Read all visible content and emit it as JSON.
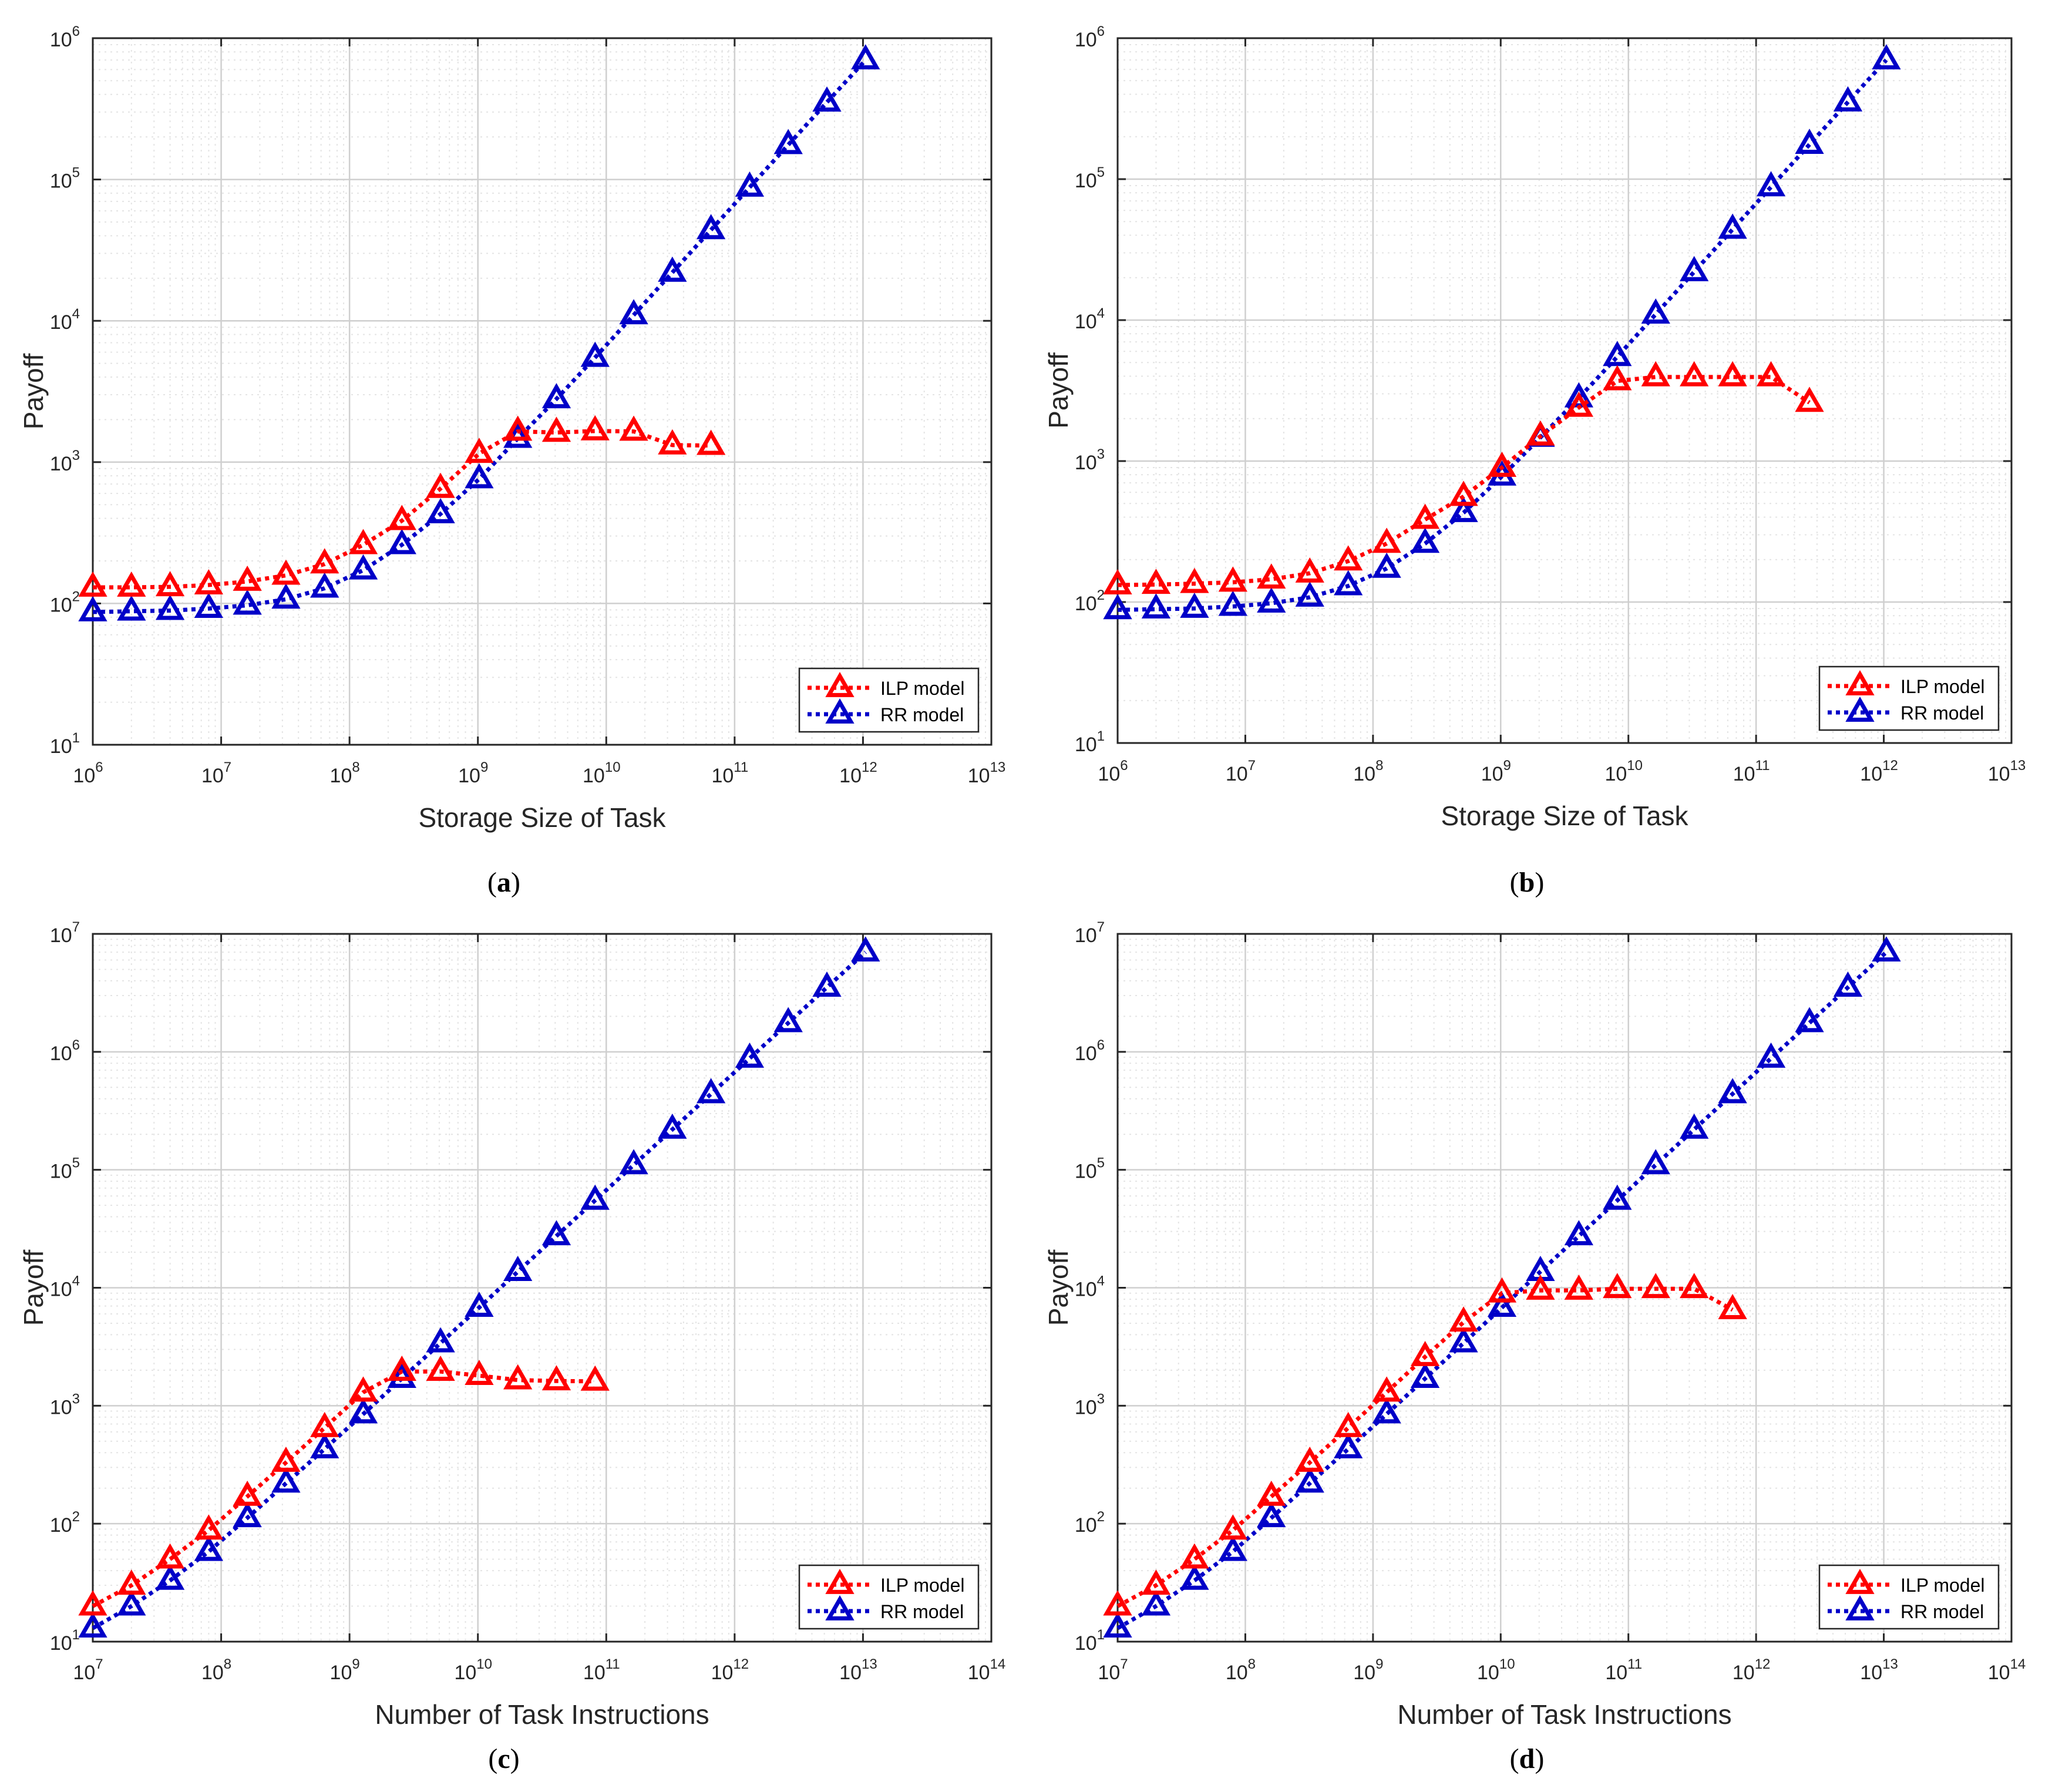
{
  "colors": {
    "ilp": "#ff0000",
    "rr": "#0000c8",
    "axis": "#262626",
    "grid_major": "#cfcfcf",
    "grid_minor": "#e4e4e4",
    "text": "#262626",
    "legend_border": "#262626"
  },
  "legend": {
    "ilp": "ILP model",
    "rr": "RR model"
  },
  "chart_data": [
    {
      "id": "a",
      "caption": "(a)",
      "type": "line",
      "xscale": "log",
      "yscale": "log",
      "xlabel": "Storage Size of Task",
      "ylabel": "Payoff",
      "xlim_exp": [
        6,
        13
      ],
      "ylim_exp": [
        1,
        6
      ],
      "x_tick_exponents": [
        "6",
        "7",
        "8",
        "9",
        "10",
        "11",
        "12",
        "13"
      ],
      "y_tick_exponents": [
        "1",
        "2",
        "3",
        "4",
        "5",
        "6"
      ],
      "tick_base": "10",
      "grid": true,
      "legend_position": "lower-right",
      "series": [
        {
          "name": "ILP model",
          "x_exp": [
            6.0,
            6.301,
            6.602,
            6.903,
            7.204,
            7.505,
            7.806,
            8.107,
            8.408,
            8.709,
            9.01,
            9.311,
            9.612,
            9.913,
            10.214,
            10.515,
            10.816
          ],
          "y": [
            130,
            130,
            131,
            135,
            143,
            158,
            190,
            260,
            385,
            650,
            1150,
            1650,
            1620,
            1660,
            1650,
            1320,
            1310
          ]
        },
        {
          "name": "RR model",
          "x_exp": [
            6.0,
            6.301,
            6.602,
            6.903,
            7.204,
            7.505,
            7.806,
            8.107,
            8.408,
            8.709,
            9.01,
            9.311,
            9.612,
            9.913,
            10.214,
            10.515,
            10.816,
            11.117,
            11.418,
            11.719,
            12.02
          ],
          "y": [
            87,
            88,
            89,
            92,
            97,
            107,
            128,
            172,
            260,
            430,
            760,
            1470,
            2800,
            5500,
            11000,
            22000,
            44000,
            88000,
            176000,
            352000,
            700000
          ]
        }
      ]
    },
    {
      "id": "b",
      "caption": "(b)",
      "type": "line",
      "xscale": "log",
      "yscale": "log",
      "xlabel": "Storage Size of Task",
      "ylabel": "Payoff",
      "xlim_exp": [
        6,
        13
      ],
      "ylim_exp": [
        1,
        6
      ],
      "x_tick_exponents": [
        "6",
        "7",
        "8",
        "9",
        "10",
        "11",
        "12",
        "13"
      ],
      "y_tick_exponents": [
        "1",
        "2",
        "3",
        "4",
        "5",
        "6"
      ],
      "tick_base": "10",
      "grid": true,
      "legend_position": "lower-right",
      "series": [
        {
          "name": "ILP model",
          "x_exp": [
            6.0,
            6.301,
            6.602,
            6.903,
            7.204,
            7.505,
            7.806,
            8.107,
            8.408,
            8.709,
            9.01,
            9.311,
            9.612,
            9.913,
            10.214,
            10.515,
            10.816,
            11.117,
            11.418
          ],
          "y": [
            132,
            133,
            135,
            138,
            145,
            160,
            195,
            260,
            385,
            560,
            900,
            1500,
            2400,
            3700,
            3950,
            3950,
            3950,
            3950,
            2600
          ]
        },
        {
          "name": "RR model",
          "x_exp": [
            6.0,
            6.301,
            6.602,
            6.903,
            7.204,
            7.505,
            7.806,
            8.107,
            8.408,
            8.709,
            9.01,
            9.311,
            9.612,
            9.913,
            10.214,
            10.515,
            10.816,
            11.117,
            11.418,
            11.719,
            12.02
          ],
          "y": [
            88,
            89,
            90,
            93,
            98,
            108,
            130,
            173,
            260,
            430,
            780,
            1470,
            2800,
            5500,
            11000,
            22000,
            44000,
            88000,
            176000,
            352000,
            700000
          ]
        }
      ]
    },
    {
      "id": "c",
      "caption": "(c)",
      "type": "line",
      "xscale": "log",
      "yscale": "log",
      "xlabel": "Number of Task Instructions",
      "ylabel": "Payoff",
      "xlim_exp": [
        7,
        14
      ],
      "ylim_exp": [
        1,
        7
      ],
      "x_tick_exponents": [
        "7",
        "8",
        "9",
        "10",
        "11",
        "12",
        "13",
        "14"
      ],
      "y_tick_exponents": [
        "1",
        "2",
        "3",
        "4",
        "5",
        "6",
        "7"
      ],
      "tick_base": "10",
      "grid": true,
      "legend_position": "lower-right",
      "series": [
        {
          "name": "ILP model",
          "x_exp": [
            7.0,
            7.301,
            7.602,
            7.903,
            8.204,
            8.505,
            8.806,
            9.107,
            9.408,
            9.709,
            10.01,
            10.311,
            10.612,
            10.913
          ],
          "y": [
            20,
            30,
            50,
            88,
            170,
            330,
            650,
            1300,
            1950,
            1950,
            1800,
            1650,
            1620,
            1610
          ]
        },
        {
          "name": "RR model",
          "x_exp": [
            7.0,
            7.301,
            7.602,
            7.903,
            8.204,
            8.505,
            8.806,
            9.107,
            9.408,
            9.709,
            10.01,
            10.311,
            10.612,
            10.913,
            11.214,
            11.515,
            11.816,
            12.117,
            12.418,
            12.719,
            13.02
          ],
          "y": [
            13,
            20,
            33,
            58,
            112,
            220,
            430,
            850,
            1700,
            3400,
            6800,
            13700,
            27500,
            55000,
            110000,
            220000,
            440000,
            880000,
            1760000,
            3520000,
            7000000
          ]
        }
      ]
    },
    {
      "id": "d",
      "caption": "(d)",
      "type": "line",
      "xscale": "log",
      "yscale": "log",
      "xlabel": "Number of Task Instructions",
      "ylabel": "Payoff",
      "xlim_exp": [
        7,
        14
      ],
      "ylim_exp": [
        1,
        7
      ],
      "x_tick_exponents": [
        "7",
        "8",
        "9",
        "10",
        "11",
        "12",
        "13",
        "14"
      ],
      "y_tick_exponents": [
        "1",
        "2",
        "3",
        "4",
        "5",
        "6",
        "7"
      ],
      "tick_base": "10",
      "grid": true,
      "legend_position": "lower-right",
      "series": [
        {
          "name": "ILP model",
          "x_exp": [
            7.0,
            7.301,
            7.602,
            7.903,
            8.204,
            8.505,
            8.806,
            9.107,
            9.408,
            9.709,
            10.01,
            10.311,
            10.612,
            10.913,
            11.214,
            11.515,
            11.816
          ],
          "y": [
            20,
            30,
            50,
            88,
            170,
            330,
            650,
            1300,
            2600,
            5100,
            9000,
            9500,
            9500,
            9800,
            9800,
            9800,
            6500
          ]
        },
        {
          "name": "RR model",
          "x_exp": [
            7.0,
            7.301,
            7.602,
            7.903,
            8.204,
            8.505,
            8.806,
            9.107,
            9.408,
            9.709,
            10.01,
            10.311,
            10.612,
            10.913,
            11.214,
            11.515,
            11.816,
            12.117,
            12.418,
            12.719,
            13.02
          ],
          "y": [
            13,
            20,
            33,
            58,
            112,
            220,
            430,
            850,
            1700,
            3400,
            6800,
            13700,
            27500,
            55000,
            110000,
            220000,
            440000,
            880000,
            1760000,
            3520000,
            7000000
          ]
        }
      ]
    }
  ]
}
